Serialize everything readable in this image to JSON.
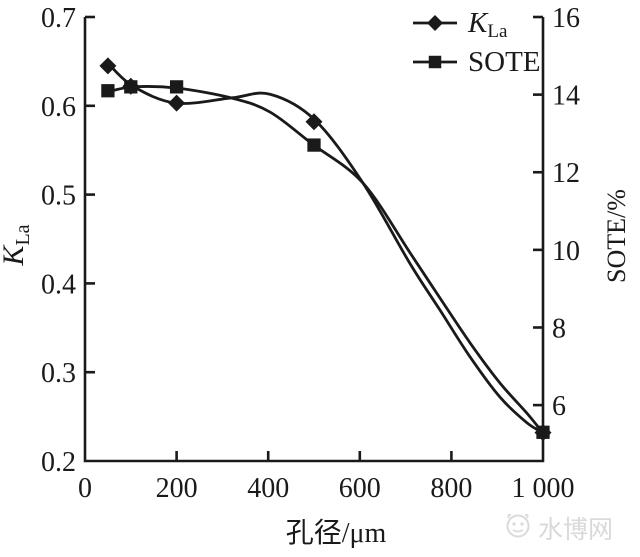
{
  "figure": {
    "background": "#ffffff",
    "ink": "#1a1a1a",
    "watermark_color": "#d9d9d9"
  },
  "chart_data": {
    "type": "line",
    "title": "",
    "grid": false,
    "legend_position": "top-right",
    "x_axis": {
      "label": "孔径/μm",
      "min": 0,
      "max": 1000,
      "ticks": [
        {
          "v": 0,
          "label": "0"
        },
        {
          "v": 200,
          "label": "200"
        },
        {
          "v": 400,
          "label": "400"
        },
        {
          "v": 600,
          "label": "600"
        },
        {
          "v": 800,
          "label": "800"
        },
        {
          "v": 1000,
          "label": "1 000"
        }
      ]
    },
    "y_left": {
      "label_main": "K",
      "label_sub": "La",
      "top": 0.7,
      "bottom": 0.2,
      "ticks": [
        {
          "v": 0.7,
          "label": "0.7"
        },
        {
          "v": 0.6,
          "label": "0.6"
        },
        {
          "v": 0.5,
          "label": "0.5"
        },
        {
          "v": 0.4,
          "label": "0.4"
        },
        {
          "v": 0.3,
          "label": "0.3"
        },
        {
          "v": 0.2,
          "label": "0.2"
        }
      ]
    },
    "y_right": {
      "label": "SOTE/%",
      "top": 16,
      "bottom": 4.56,
      "ticks": [
        {
          "v": 16,
          "label": "16"
        },
        {
          "v": 14,
          "label": "14"
        },
        {
          "v": 12,
          "label": "12"
        },
        {
          "v": 10,
          "label": "10"
        },
        {
          "v": 8,
          "label": "8"
        },
        {
          "v": 6,
          "label": "6"
        }
      ]
    },
    "series": [
      {
        "name": "KLa",
        "axis": "left",
        "marker": "diamond",
        "points": [
          [
            50,
            0.645
          ],
          [
            100,
            0.622
          ],
          [
            200,
            0.603
          ],
          [
            500,
            0.582
          ],
          [
            1000,
            0.232
          ]
        ],
        "curve": [
          [
            50,
            0.648
          ],
          [
            105,
            0.622
          ],
          [
            199,
            0.603
          ],
          [
            321,
            0.609
          ],
          [
            404,
            0.613
          ],
          [
            502,
            0.584
          ],
          [
            607,
            0.513
          ],
          [
            710,
            0.422
          ],
          [
            775,
            0.37
          ],
          [
            841,
            0.317
          ],
          [
            906,
            0.272
          ],
          [
            965,
            0.243
          ],
          [
            1000,
            0.232
          ]
        ]
      },
      {
        "name": "SOTE",
        "axis": "right",
        "marker": "square",
        "points": [
          [
            50,
            14.1
          ],
          [
            100,
            14.2
          ],
          [
            200,
            14.2
          ],
          [
            500,
            12.7
          ],
          [
            1000,
            5.3
          ]
        ],
        "curve": [
          [
            50,
            14.07
          ],
          [
            105,
            14.2
          ],
          [
            199,
            14.17
          ],
          [
            321,
            13.91
          ],
          [
            404,
            13.55
          ],
          [
            496,
            12.73
          ],
          [
            607,
            11.72
          ],
          [
            710,
            9.92
          ],
          [
            775,
            8.76
          ],
          [
            841,
            7.6
          ],
          [
            906,
            6.57
          ],
          [
            965,
            5.79
          ],
          [
            1000,
            5.28
          ]
        ]
      }
    ],
    "legend": [
      {
        "series": "KLa",
        "marker": "diamond",
        "label_main": "K",
        "label_sub": "La"
      },
      {
        "series": "SOTE",
        "marker": "square",
        "label": "SOTE"
      }
    ]
  },
  "watermark": {
    "text": "水博网"
  }
}
